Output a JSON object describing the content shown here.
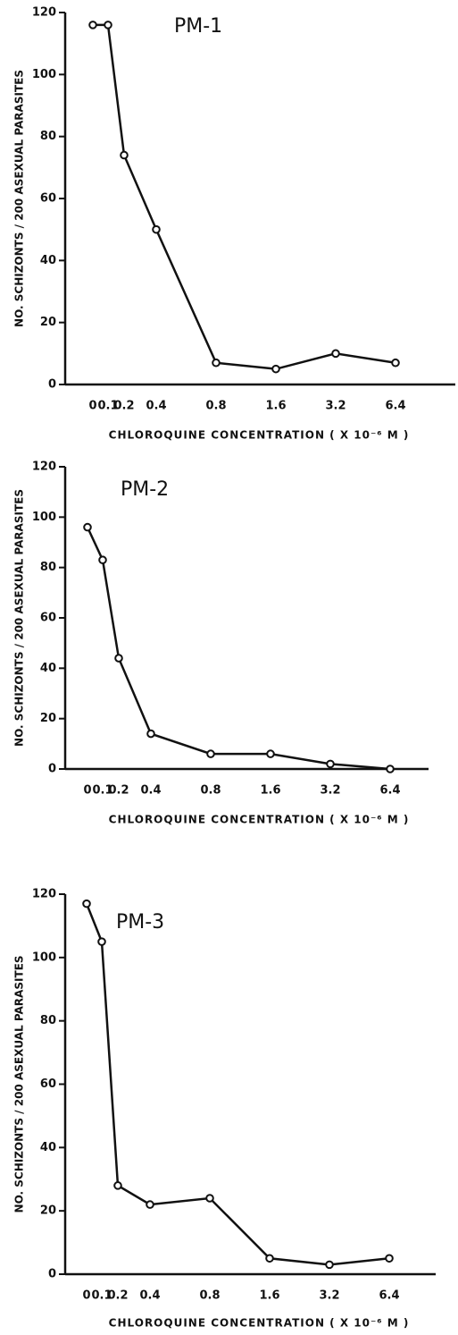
{
  "chart_data": [
    {
      "type": "line",
      "title": "PM-1",
      "categories": [
        "0",
        "0.1",
        "0.2",
        "0.4",
        "0.8",
        "1.6",
        "3.2",
        "6.4"
      ],
      "series": [
        {
          "name": "PM-1",
          "color": "#111111",
          "values": [
            116,
            116,
            74,
            50,
            7,
            5,
            10,
            7
          ]
        }
      ],
      "xlabel": "CHLOROQUINE CONCENTRATION ( X 10⁻⁶ M )",
      "ylabel": "NO. SCHIZONTS / 200 ASEXUAL PARASITES",
      "ylim": [
        0,
        120
      ],
      "yticks": [
        0,
        20,
        40,
        60,
        80,
        100,
        120
      ]
    },
    {
      "type": "line",
      "title": "PM-2",
      "categories": [
        "0",
        "0.1",
        "0.2",
        "0.4",
        "0.8",
        "1.6",
        "3.2",
        "6.4"
      ],
      "series": [
        {
          "name": "PM-2",
          "color": "#111111",
          "values": [
            96,
            83,
            44,
            14,
            6,
            6,
            2,
            0
          ]
        }
      ],
      "xlabel": "CHLOROQUINE CONCENTRATION ( X 10⁻⁶ M )",
      "ylabel": "NO. SCHIZONTS / 200 ASEXUAL PARASITES",
      "ylim": [
        0,
        120
      ],
      "yticks": [
        0,
        20,
        40,
        60,
        80,
        100,
        120
      ]
    },
    {
      "type": "line",
      "title": "PM-3",
      "categories": [
        "0",
        "0.1",
        "0.2",
        "0.4",
        "0.8",
        "1.6",
        "3.2",
        "6.4"
      ],
      "series": [
        {
          "name": "PM-3",
          "color": "#111111",
          "values": [
            117,
            105,
            28,
            22,
            24,
            5,
            3,
            5
          ]
        }
      ],
      "xlabel": "CHLOROQUINE CONCENTRATION ( X 10⁻⁶ M )",
      "ylabel": "NO. SCHIZONTS / 200 ASEXUAL PARASITES",
      "ylim": [
        0,
        120
      ],
      "yticks": [
        0,
        20,
        40,
        60,
        80,
        100,
        120
      ]
    }
  ]
}
